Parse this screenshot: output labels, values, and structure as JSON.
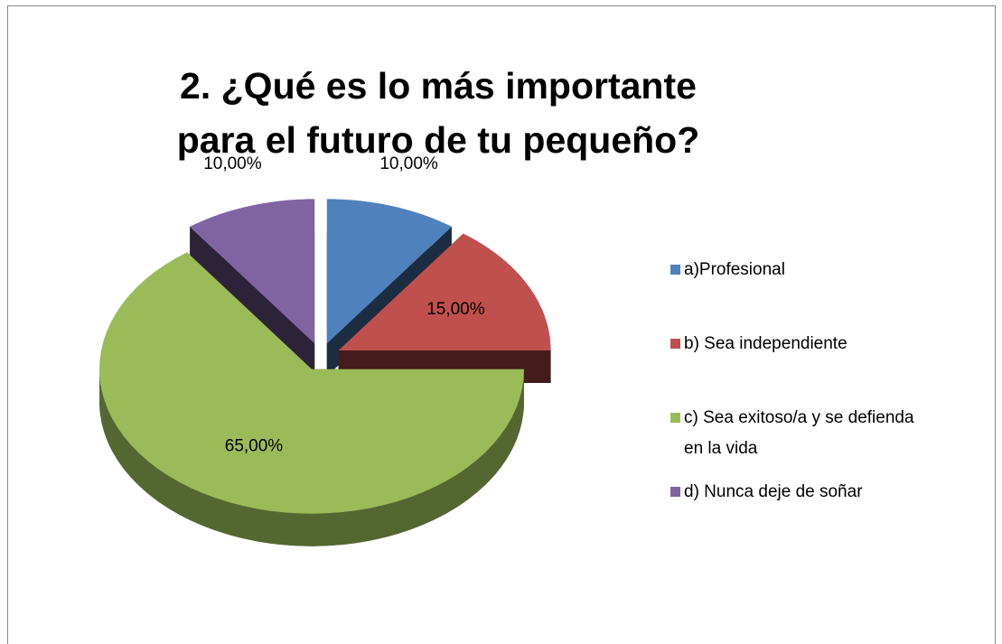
{
  "chart_data": {
    "type": "pie3d",
    "title": "2. ¿Qué es lo más importante para el futuro de tu pequeño?",
    "categories": [
      "a)Profesional",
      "b) Sea independiente",
      "c) Sea exitoso/a y se defienda en la vida",
      "d) Nunca deje de soñar"
    ],
    "values": [
      10,
      15,
      65,
      10
    ],
    "value_labels": [
      "10,00%",
      "15,00%",
      "65,00%",
      "10,00%"
    ],
    "colors": [
      "#4f81bd",
      "#c0504d",
      "#9bbb59",
      "#8064a2"
    ],
    "legend": "right"
  }
}
